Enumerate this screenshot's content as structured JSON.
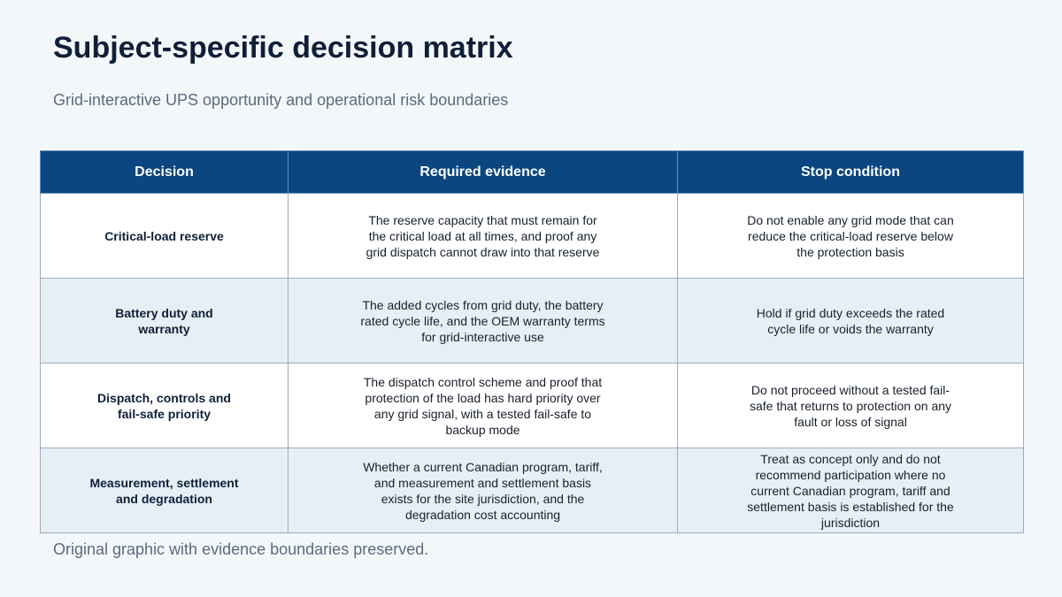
{
  "header": {
    "title": "Subject-specific decision matrix",
    "subtitle": "Grid-interactive UPS opportunity and operational risk boundaries"
  },
  "table": {
    "columns": [
      "Decision",
      "Required evidence",
      "Stop condition"
    ],
    "rows": [
      {
        "decision": "Critical-load reserve",
        "evidence": "The reserve capacity that must remain for the critical load at all times, and proof any grid dispatch cannot draw into that reserve",
        "stop": "Do not enable any grid mode that can reduce the critical-load reserve below the protection basis"
      },
      {
        "decision": "Battery duty and warranty",
        "evidence": "The added cycles from grid duty, the battery rated cycle life, and the OEM warranty terms for grid-interactive use",
        "stop": "Hold if grid duty exceeds the rated cycle life or voids the warranty"
      },
      {
        "decision": "Dispatch, controls and fail-safe priority",
        "evidence": "The dispatch control scheme and proof that protection of the load has hard priority over any grid signal, with a tested fail-safe to backup mode",
        "stop": "Do not proceed without a tested fail-safe that returns to protection on any fault or loss of signal"
      },
      {
        "decision": "Measurement, settlement and degradation",
        "evidence": "Whether a current Canadian program, tariff, and measurement and settlement basis exists for the site jurisdiction, and the degradation cost accounting",
        "stop": "Treat as concept only and do not recommend participation where no current Canadian program, tariff and settlement basis is established for the jurisdiction"
      }
    ]
  },
  "footer": {
    "note": "Original graphic with evidence boundaries preserved."
  }
}
